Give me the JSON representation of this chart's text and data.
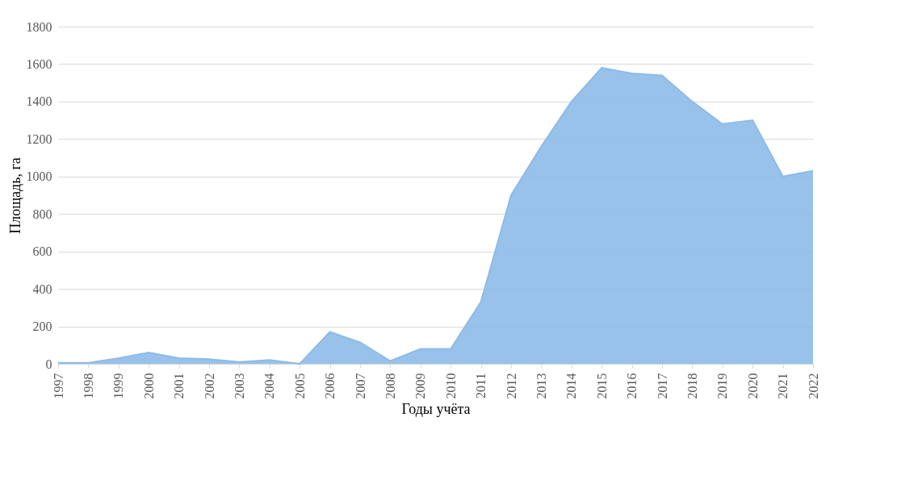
{
  "chart_data": {
    "type": "area",
    "xlabel": "Годы учёта",
    "ylabel": "Площадь, га",
    "categories": [
      "1997",
      "1998",
      "1999",
      "2000",
      "2001",
      "2002",
      "2003",
      "2004",
      "2005",
      "2006",
      "2007",
      "2008",
      "2009",
      "2010",
      "2011",
      "2012",
      "2013",
      "2014",
      "2015",
      "2016",
      "2017",
      "2018",
      "2019",
      "2020",
      "2021",
      "2022"
    ],
    "series": [
      {
        "color": "#8dbbe8",
        "values": [
          5,
          5,
          30,
          60,
          30,
          25,
          10,
          20,
          0,
          170,
          115,
          15,
          80,
          80,
          330,
          900,
          1160,
          1400,
          1580,
          1550,
          1540,
          1400,
          1280,
          1300,
          1000,
          1030
        ]
      }
    ],
    "ylim": [
      0,
      1800
    ],
    "yticks": [
      0,
      200,
      400,
      600,
      800,
      1000,
      1200,
      1400,
      1600,
      1800
    ],
    "grid": "y"
  }
}
